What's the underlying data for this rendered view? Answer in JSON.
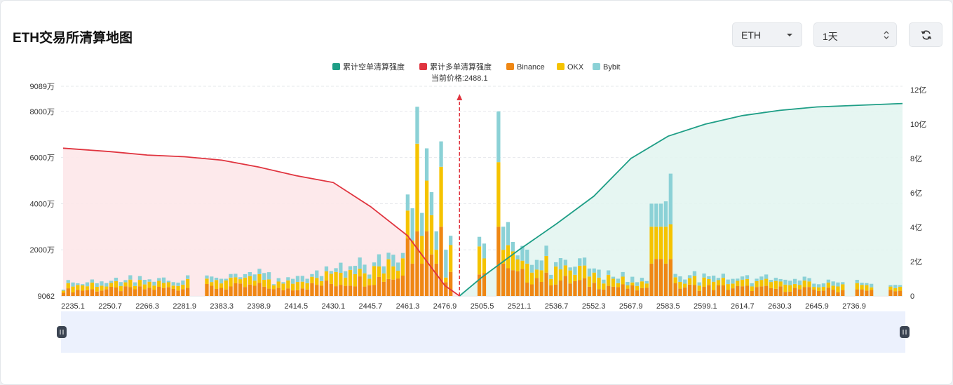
{
  "header": {
    "title": "ETH交易所清算地图"
  },
  "controls": {
    "asset": "ETH",
    "period": "1天",
    "asset_icon": "chevron-down-icon",
    "period_icon": "up-down-chevron-icon",
    "refresh_icon": "refresh-icon"
  },
  "chart_data": {
    "type": "bar",
    "current_price_label": "当前价格:2488.1",
    "current_price": 2488.1,
    "legend": [
      {
        "name": "累计空单清算强度",
        "color": "#1e9e86"
      },
      {
        "name": "累计多单清算强度",
        "color": "#e0343f"
      },
      {
        "name": "Binance",
        "color": "#ef8714"
      },
      {
        "name": "OKX",
        "color": "#f5c300"
      },
      {
        "name": "Bybit",
        "color": "#8bd1d6"
      }
    ],
    "y_left_ticks": [
      "9062",
      "2000万",
      "4000万",
      "6000万",
      "8000万",
      "9089万"
    ],
    "y_left_values": [
      9062,
      20000000,
      40000000,
      60000000,
      80000000,
      90890000
    ],
    "y_left_range": [
      0,
      90890000
    ],
    "y_right_ticks": [
      "0",
      "2亿",
      "4亿",
      "6亿",
      "8亿",
      "10亿",
      "12亿"
    ],
    "y_right_range": [
      0,
      1200000000
    ],
    "x_tick_labels": [
      "2235.1",
      "2250.7",
      "2266.3",
      "2281.9",
      "2383.3",
      "2398.9",
      "2414.5",
      "2430.1",
      "2445.7",
      "2461.3",
      "2476.9",
      "2505.5",
      "2521.1",
      "2536.7",
      "2552.3",
      "2567.9",
      "2583.5",
      "2599.1",
      "2614.7",
      "2630.3",
      "2645.9",
      "2736.9"
    ],
    "bar_count": 176,
    "gap_bars": [
      [
        27,
        29
      ],
      [
        82,
        83
      ],
      [
        85,
        86
      ],
      [
        89,
        90
      ],
      [
        164,
        165
      ],
      [
        170,
        172
      ]
    ],
    "peaks": [
      {
        "bar": 72,
        "binance": 25000000,
        "okx": 12000000,
        "bybit": 7000000
      },
      {
        "bar": 73,
        "binance": 14000000,
        "okx": 10000000,
        "bybit": 14000000
      },
      {
        "bar": 74,
        "binance": 28000000,
        "okx": 38000000,
        "bybit": 16000000
      },
      {
        "bar": 75,
        "binance": 14000000,
        "okx": 12000000,
        "bybit": 10000000
      },
      {
        "bar": 76,
        "binance": 28000000,
        "okx": 22000000,
        "bybit": 14000000
      },
      {
        "bar": 77,
        "binance": 18000000,
        "okx": 17000000,
        "bybit": 10000000
      },
      {
        "bar": 78,
        "binance": 14000000,
        "okx": 6000000,
        "bybit": 8000000
      },
      {
        "bar": 79,
        "binance": 30000000,
        "okx": 26000000,
        "bybit": 11000000
      },
      {
        "bar": 80,
        "binance": 6000000,
        "okx": 2000000,
        "bybit": 12000000
      },
      {
        "bar": 91,
        "binance": 30000000,
        "okx": 28000000,
        "bybit": 22000000
      },
      {
        "bar": 92,
        "binance": 14000000,
        "okx": 6000000,
        "bybit": 10000000
      },
      {
        "bar": 93,
        "binance": 12000000,
        "okx": 10000000,
        "bybit": 10000000
      },
      {
        "bar": 123,
        "binance": 14000000,
        "okx": 16000000,
        "bybit": 10000000
      },
      {
        "bar": 124,
        "binance": 16000000,
        "okx": 14000000,
        "bybit": 10000000
      },
      {
        "bar": 125,
        "binance": 16000000,
        "okx": 14000000,
        "bybit": 10000000
      },
      {
        "bar": 126,
        "binance": 14000000,
        "okx": 16000000,
        "bybit": 11000000
      },
      {
        "bar": 127,
        "binance": 16000000,
        "okx": 15000000,
        "bybit": 22000000
      }
    ],
    "long_cumulative": [
      [
        2235.1,
        860000000
      ],
      [
        2250.7,
        840000000
      ],
      [
        2266.3,
        820000000
      ],
      [
        2281.9,
        810000000
      ],
      [
        2383.3,
        790000000
      ],
      [
        2398.9,
        750000000
      ],
      [
        2414.5,
        700000000
      ],
      [
        2430.1,
        660000000
      ],
      [
        2445.7,
        520000000
      ],
      [
        2461.3,
        350000000
      ],
      [
        2476.9,
        60000000
      ],
      [
        2488.1,
        0
      ]
    ],
    "short_cumulative": [
      [
        2488.1,
        0
      ],
      [
        2505.5,
        110000000
      ],
      [
        2521.1,
        270000000
      ],
      [
        2536.7,
        420000000
      ],
      [
        2552.3,
        580000000
      ],
      [
        2567.9,
        800000000
      ],
      [
        2583.5,
        930000000
      ],
      [
        2599.1,
        1000000000
      ],
      [
        2614.7,
        1050000000
      ],
      [
        2630.3,
        1080000000
      ],
      [
        2645.9,
        1100000000
      ],
      [
        2736.9,
        1120000000
      ]
    ]
  },
  "slider": {
    "left_handle": "drag-handle-icon",
    "right_handle": "drag-handle-icon"
  }
}
